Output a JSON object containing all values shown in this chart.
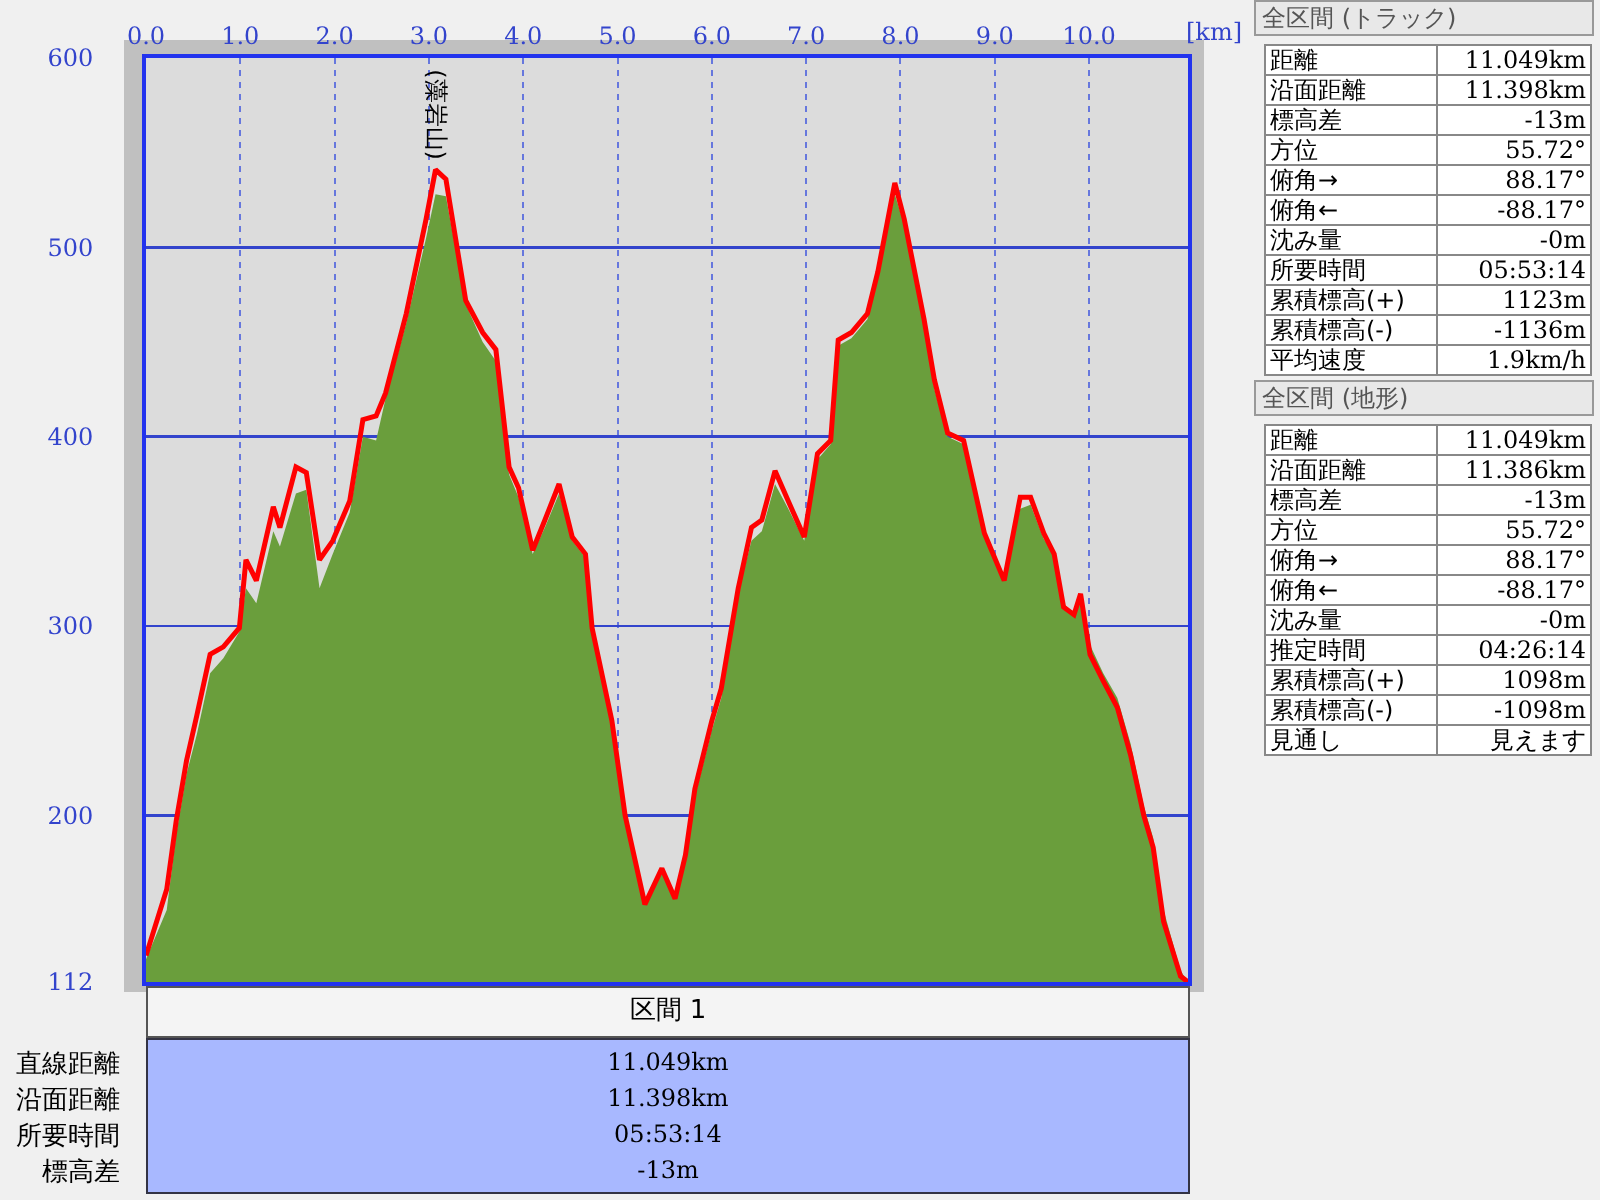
{
  "chart_data": [
    {
      "type": "area",
      "xlabel": "[km]",
      "xlim": [
        0,
        11.049
      ],
      "xticks": [
        {
          "value": 0,
          "label": "0.0"
        },
        {
          "value": 1,
          "label": "1.0"
        },
        {
          "value": 2,
          "label": "2.0"
        },
        {
          "value": 3,
          "label": "3.0"
        },
        {
          "value": 4,
          "label": "4.0"
        },
        {
          "value": 5,
          "label": "5.0"
        },
        {
          "value": 6,
          "label": "6.0"
        },
        {
          "value": 7,
          "label": "7.0"
        },
        {
          "value": 8,
          "label": "8.0"
        },
        {
          "value": 9,
          "label": "9.0"
        },
        {
          "value": 10,
          "label": "10.0"
        }
      ],
      "ylim": [
        112,
        600
      ],
      "yticks": [
        112,
        200,
        300,
        400,
        500,
        600
      ],
      "grid": true,
      "line_style": "solid",
      "annotations": [
        {
          "text": "(藻岩山)",
          "x": 3.07,
          "y": 541
        }
      ],
      "series": [
        {
          "type": "area",
          "color": "#6a9e3c",
          "x": [
            0,
            0.22,
            0.32,
            0.43,
            0.54,
            0.68,
            0.82,
            0.99,
            1.06,
            1.17,
            1.35,
            1.42,
            1.59,
            1.7,
            1.84,
            1.98,
            2.16,
            2.3,
            2.44,
            2.54,
            2.76,
            2.97,
            3.07,
            3.18,
            3.39,
            3.57,
            3.71,
            3.85,
            3.95,
            4.1,
            4.23,
            4.38,
            4.52,
            4.66,
            4.73,
            4.94,
            5.08,
            5.29,
            5.47,
            5.61,
            5.72,
            5.82,
            6.0,
            6.1,
            6.28,
            6.42,
            6.53,
            6.67,
            6.81,
            6.98,
            7.12,
            7.26,
            7.34,
            7.48,
            7.65,
            7.76,
            7.94,
            8.04,
            8.25,
            8.36,
            8.5,
            8.67,
            8.89,
            9.1,
            9.27,
            9.38,
            9.52,
            9.63,
            9.73,
            9.84,
            9.91,
            10.01,
            10.15,
            10.3,
            10.44,
            10.58,
            10.68,
            10.79,
            10.97,
            11.049
          ],
          "values": [
            124,
            150,
            190,
            222,
            243,
            275,
            283,
            297,
            320,
            312,
            350,
            342,
            370,
            372,
            320,
            338,
            360,
            400,
            398,
            420,
            460,
            505,
            528,
            527,
            470,
            450,
            440,
            380,
            368,
            338,
            352,
            370,
            345,
            336,
            298,
            250,
            200,
            153,
            172,
            156,
            179,
            210,
            245,
            262,
            318,
            345,
            350,
            375,
            362,
            345,
            388,
            396,
            448,
            452,
            462,
            485,
            528,
            512,
            460,
            425,
            400,
            396,
            350,
            326,
            362,
            364,
            346,
            338,
            312,
            306,
            316,
            290,
            275,
            262,
            238,
            205,
            188,
            150,
            118,
            112
          ]
        },
        {
          "type": "line",
          "color": "#ff0000",
          "x": [
            0,
            0.22,
            0.32,
            0.43,
            0.54,
            0.68,
            0.82,
            0.99,
            1.06,
            1.17,
            1.35,
            1.42,
            1.59,
            1.7,
            1.84,
            1.98,
            2.16,
            2.3,
            2.44,
            2.54,
            2.76,
            2.97,
            3.07,
            3.18,
            3.39,
            3.57,
            3.71,
            3.85,
            3.95,
            4.1,
            4.23,
            4.38,
            4.52,
            4.66,
            4.73,
            4.94,
            5.08,
            5.29,
            5.47,
            5.61,
            5.72,
            5.82,
            6.0,
            6.1,
            6.28,
            6.42,
            6.53,
            6.67,
            6.81,
            6.98,
            7.12,
            7.26,
            7.34,
            7.48,
            7.65,
            7.76,
            7.94,
            8.04,
            8.25,
            8.36,
            8.5,
            8.67,
            8.89,
            9.1,
            9.27,
            9.38,
            9.52,
            9.63,
            9.73,
            9.84,
            9.91,
            10.01,
            10.15,
            10.3,
            10.44,
            10.58,
            10.68,
            10.79,
            10.97,
            11.049
          ],
          "values": [
            126,
            161,
            197,
            229,
            253,
            285,
            289,
            299,
            335,
            324,
            363,
            352,
            384,
            381,
            335,
            345,
            366,
            409,
            411,
            423,
            465,
            515,
            541,
            536,
            472,
            455,
            446,
            384,
            373,
            340,
            356,
            375,
            347,
            338,
            299,
            250,
            200,
            153,
            172,
            156,
            179,
            214,
            250,
            267,
            320,
            352,
            356,
            382,
            366,
            347,
            391,
            398,
            451,
            455,
            465,
            487,
            534,
            515,
            462,
            430,
            402,
            398,
            349,
            324,
            368,
            368,
            349,
            338,
            310,
            306,
            317,
            285,
            271,
            257,
            232,
            200,
            183,
            144,
            115,
            112
          ]
        }
      ]
    },
    {
      "type": "other",
      "title": "全区間 (トラック)",
      "annotations": [
        "距離",
        "11.049km",
        "沿面距離",
        "11.398km",
        "標高差",
        "-13m",
        "方位",
        "55.72°",
        "俯角→",
        "88.17°",
        "俯角←",
        "-88.17°",
        "沈み量",
        "-0m",
        "所要時間",
        "05:53:14",
        "累積標高(+)",
        "1123m",
        "累積標高(-)",
        "-1136m",
        "平均速度",
        "1.9km/h"
      ]
    },
    {
      "type": "other",
      "title": "全区間 (地形)",
      "annotations": [
        "距離",
        "11.049km",
        "沿面距離",
        "11.386km",
        "標高差",
        "-13m",
        "方位",
        "55.72°",
        "俯角→",
        "88.17°",
        "俯角←",
        "-88.17°",
        "沈み量",
        "-0m",
        "推定時間",
        "04:26:14",
        "累積標高(+)",
        "1098m",
        "累積標高(-)",
        "-1098m",
        "見通し",
        "見えます"
      ]
    },
    {
      "type": "other",
      "title": "区間 1",
      "annotations": [
        "直線距離",
        "11.049km",
        "沿面距離",
        "11.398km",
        "所要時間",
        "05:53:14",
        "標高差",
        "-13m"
      ]
    }
  ]
}
